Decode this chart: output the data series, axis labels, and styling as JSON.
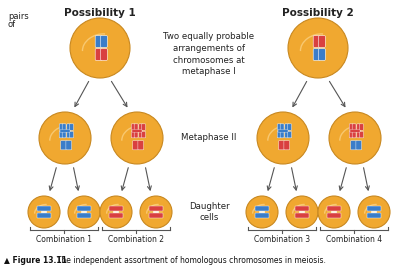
{
  "bg_color": "#ffffff",
  "cell_color": "#F0A830",
  "cell_edge_color": "#C88820",
  "cell_highlight": "#F8C870",
  "blue_chrom": "#3A7DC9",
  "red_chrom": "#D94040",
  "title_arrow": "▲",
  "title_bold": "Figure 13.11",
  "title_rest": "  The independent assortment of homologous chromosomes in meiosis.",
  "label_poss1": "Possibility 1",
  "label_poss2": "Possibility 2",
  "label_metaphase1": "Two equally probable\narrangements of\nchromosomes at\nmetaphase I",
  "label_metaphase2": "Metaphase II",
  "label_daughter": "Daughter\ncells",
  "label_combo1": "Combination 1",
  "label_combo2": "Combination 2",
  "label_combo3": "Combination 3",
  "label_combo4": "Combination 4",
  "label_left_line1": "pairs",
  "label_left_line2": "of",
  "arrow_color": "#555555",
  "text_color": "#222222",
  "brace_color": "#555555"
}
